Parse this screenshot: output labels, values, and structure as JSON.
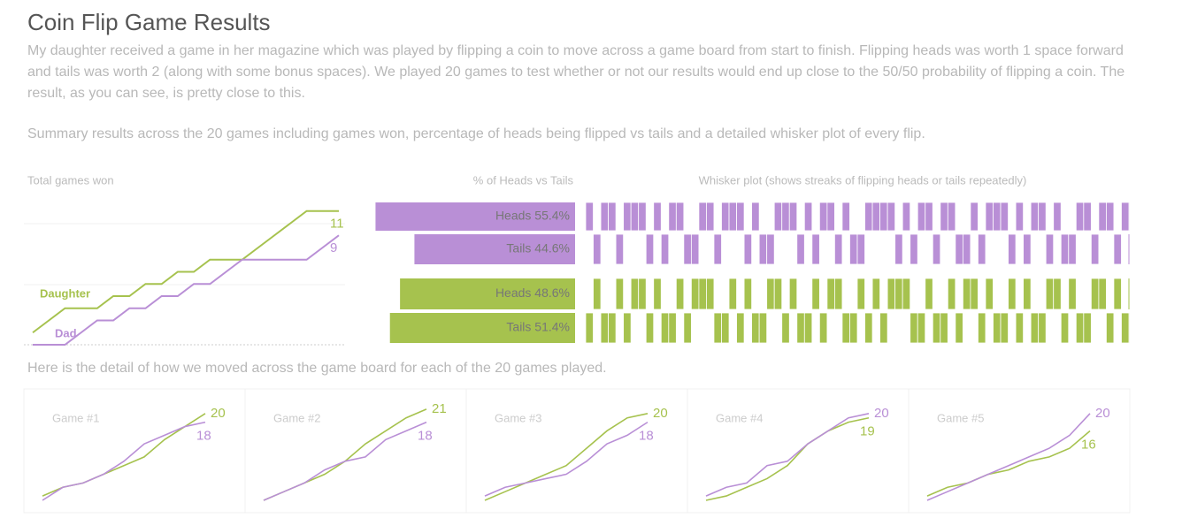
{
  "header": {
    "title": "Coin Flip Game Results",
    "description": "My daughter received a game in her magazine which was played by flipping a coin to move across a game board from start to finish. Flipping heads was worth 1 space forward and tails was worth 2 (along with some bonus spaces). We played 20 games to test whether or not our results would end up close to the 50/50 probability of flipping a coin. The result, as you can see, is pretty close to this.",
    "summary": "Summary results across the 20 games including games won, percentage of heads being flipped vs tails and a detailed whisker plot of every flip.",
    "detail_intro": "Here is the detail of how we moved across the game board for each of the 20 games played."
  },
  "chart_data": [
    {
      "type": "line",
      "title": "Total games won",
      "ylim": [
        0,
        12
      ],
      "series": [
        {
          "name": "Daughter",
          "color": "#a6c24e",
          "values": [
            1,
            2,
            3,
            3,
            3,
            4,
            4,
            5,
            5,
            6,
            6,
            7,
            7,
            7,
            8,
            9,
            10,
            11,
            11,
            11
          ]
        },
        {
          "name": "Dad",
          "color": "#b98fd6",
          "values": [
            0,
            0,
            0,
            1,
            2,
            2,
            3,
            3,
            4,
            4,
            5,
            5,
            6,
            7,
            7,
            7,
            7,
            7,
            8,
            9
          ]
        }
      ]
    },
    {
      "type": "hbar",
      "title": "% of Heads vs Tails",
      "xlim": [
        0,
        56
      ],
      "series": [
        {
          "name": "Dad",
          "color": "#b98fd6",
          "categories": [
            "Heads",
            "Tails"
          ],
          "values": [
            55.4,
            44.6
          ],
          "value_labels": [
            "Heads 55.4%",
            "Tails 44.6%"
          ]
        },
        {
          "name": "Daughter",
          "color": "#a6c24e",
          "categories": [
            "Heads",
            "Tails"
          ],
          "values": [
            48.6,
            51.4
          ],
          "value_labels": [
            "Heads 48.6%",
            "Tails 51.4%"
          ]
        }
      ]
    },
    {
      "type": "whisker",
      "title": "Whisker plot (shows streaks of flipping heads or tails repeatedly)",
      "series": [
        {
          "name": "Dad",
          "color": "#b98fd6",
          "values": [
            1,
            0,
            1,
            1,
            0,
            1,
            1,
            1,
            0,
            1,
            0,
            1,
            1,
            0,
            0,
            1,
            1,
            0,
            1,
            1,
            1,
            0,
            1,
            0,
            0,
            1,
            1,
            1,
            0,
            1,
            0,
            1,
            1,
            0,
            1,
            0,
            0,
            1,
            1,
            1,
            1,
            0,
            1,
            0,
            1,
            1,
            0,
            1,
            1,
            0,
            0,
            1,
            0,
            1,
            1,
            1,
            0,
            1,
            0,
            1,
            1,
            0,
            1,
            0,
            0,
            1,
            1,
            0,
            1,
            1,
            0,
            1
          ]
        },
        {
          "name": "Daughter",
          "color": "#a6c24e",
          "values": [
            0,
            1,
            0,
            0,
            1,
            0,
            1,
            1,
            0,
            1,
            0,
            0,
            1,
            0,
            1,
            1,
            1,
            0,
            0,
            1,
            0,
            1,
            0,
            0,
            1,
            1,
            0,
            1,
            0,
            0,
            1,
            0,
            1,
            1,
            0,
            0,
            1,
            0,
            1,
            0,
            1,
            1,
            1,
            0,
            0,
            1,
            0,
            0,
            1,
            0,
            1,
            1,
            0,
            1,
            0,
            0,
            1,
            0,
            1,
            0,
            0,
            1,
            1,
            0,
            1,
            0,
            0,
            1,
            1,
            0,
            1,
            0
          ]
        }
      ]
    },
    {
      "type": "small_multiples",
      "ylim": [
        0,
        22
      ],
      "games": [
        {
          "title": "Game #1",
          "series": [
            {
              "values": [
                1,
                3,
                4,
                6,
                8,
                10,
                14,
                17,
                20
              ]
            },
            {
              "values": [
                0,
                3,
                4,
                6,
                9,
                13,
                15,
                17,
                18
              ]
            }
          ]
        },
        {
          "title": "Game #2",
          "series": [
            {
              "values": [
                0,
                2,
                4,
                6,
                9,
                13,
                16,
                19,
                21
              ]
            },
            {
              "values": [
                0,
                2,
                4,
                7,
                9,
                10,
                14,
                16,
                18
              ]
            }
          ]
        },
        {
          "title": "Game #3",
          "series": [
            {
              "values": [
                0,
                2,
                4,
                6,
                8,
                12,
                16,
                19,
                20
              ]
            },
            {
              "values": [
                1,
                3,
                4,
                5,
                6,
                9,
                13,
                15,
                18
              ]
            }
          ]
        },
        {
          "title": "Game #4",
          "series": [
            {
              "values": [
                0,
                1,
                3,
                5,
                8,
                13,
                16,
                18,
                19
              ]
            },
            {
              "values": [
                1,
                3,
                4,
                8,
                9,
                13,
                16,
                19,
                20
              ]
            }
          ]
        },
        {
          "title": "Game #5",
          "series": [
            {
              "values": [
                1,
                3,
                4,
                6,
                7,
                9,
                10,
                12,
                16
              ]
            },
            {
              "values": [
                0,
                2,
                4,
                6,
                8,
                10,
                12,
                15,
                20
              ]
            }
          ]
        }
      ]
    }
  ]
}
